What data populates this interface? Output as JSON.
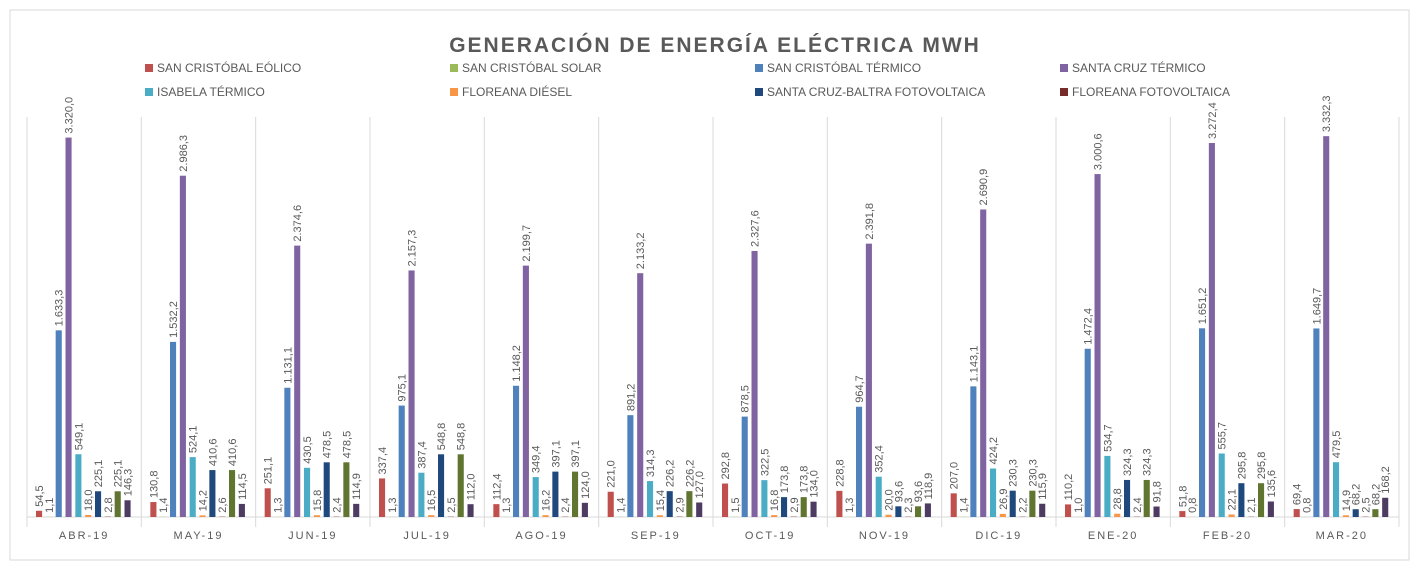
{
  "chart_data": {
    "type": "bar",
    "title": "GENERACIÓN DE ENERGÍA ELÉCTRICA MWH",
    "categories": [
      "ABR-19",
      "MAY-19",
      "JUN-19",
      "JUL-19",
      "AGO-19",
      "SEP-19",
      "OCT-19",
      "NOV-19",
      "DIC-19",
      "ENE-20",
      "FEB-20",
      "MAR-20"
    ],
    "ylim": [
      0,
      3500
    ],
    "series": [
      {
        "name": "SAN CRISTÓBAL EÓLICO",
        "color": "#c0504d",
        "values": [
          54.5,
          130.8,
          251.1,
          337.4,
          112.4,
          221.0,
          292.8,
          228.8,
          207.0,
          110.2,
          51.8,
          69.4
        ],
        "value_labels": [
          "54,5",
          "130,8",
          "251,1",
          "337,4",
          "112,4",
          "221,0",
          "292,8",
          "228,8",
          "207,0",
          "110,2",
          "51,8",
          "69,4"
        ]
      },
      {
        "name": "SAN CRISTÓBAL SOLAR",
        "color": "#9bbb59",
        "values": [
          1.1,
          1.4,
          1.3,
          1.3,
          1.3,
          1.4,
          1.5,
          1.3,
          1.4,
          1.0,
          0.8,
          0.8
        ],
        "value_labels": [
          "1,1",
          "1,4",
          "1,3",
          "1,3",
          "1,3",
          "1,4",
          "1,5",
          "1,3",
          "1,4",
          "1,0",
          "0,8",
          "0,8"
        ]
      },
      {
        "name": "SAN CRISTÓBAL TÉRMICO",
        "color": "#4f81bd",
        "values": [
          1633.3,
          1532.2,
          1131.1,
          975.1,
          1148.2,
          891.2,
          878.5,
          964.7,
          1143.1,
          1472.4,
          1651.2,
          1649.7
        ],
        "value_labels": [
          "1.633,3",
          "1.532,2",
          "1.131,1",
          "975,1",
          "1.148,2",
          "891,2",
          "878,5",
          "964,7",
          "1.143,1",
          "1.472,4",
          "1.651,2",
          "1.649,7"
        ]
      },
      {
        "name": "SANTA CRUZ TÉRMICO",
        "color": "#8064a2",
        "values": [
          3320.0,
          2986.3,
          2374.6,
          2157.3,
          2199.7,
          2133.2,
          2327.6,
          2391.8,
          2690.9,
          3000.6,
          3272.4,
          3332.3
        ],
        "value_labels": [
          "3.320,0",
          "2.986,3",
          "2.374,6",
          "2.157,3",
          "2.199,7",
          "2.133,2",
          "2.327,6",
          "2.391,8",
          "2.690,9",
          "3.000,6",
          "3.272,4",
          "3.332,3"
        ]
      },
      {
        "name": "ISABELA TÉRMICO",
        "color": "#4bacc6",
        "values": [
          549.1,
          524.1,
          430.5,
          387.4,
          349.4,
          314.3,
          322.5,
          352.4,
          424.2,
          534.7,
          555.7,
          479.5
        ],
        "value_labels": [
          "549,1",
          "524,1",
          "430,5",
          "387,4",
          "349,4",
          "314,3",
          "322,5",
          "352,4",
          "424,2",
          "534,7",
          "555,7",
          "479,5"
        ]
      },
      {
        "name": "FLOREANA DIÉSEL",
        "color": "#f79646",
        "values": [
          18.0,
          14.2,
          15.8,
          16.5,
          16.2,
          15.4,
          16.8,
          20.0,
          26.9,
          28.8,
          22.1,
          14.9
        ],
        "value_labels": [
          "18,0",
          "14,2",
          "15,8",
          "16,5",
          "16,2",
          "15,4",
          "16,8",
          "20,0",
          "26,9",
          "28,8",
          "22,1",
          "14,9"
        ]
      },
      {
        "name": "SANTA CRUZ-BALTRA FOTOVOLTAICA",
        "color": "#1f497d",
        "values": [
          225.1,
          410.6,
          478.5,
          548.8,
          397.1,
          226.2,
          173.8,
          93.6,
          230.3,
          324.3,
          295.8,
          68.2
        ],
        "value_labels": [
          "225,1",
          "410,6",
          "478,5",
          "548,8",
          "397,1",
          "226,2",
          "173,8",
          "93,6",
          "230,3",
          "324,3",
          "295,8",
          "68,2"
        ]
      },
      {
        "name": "FLOREANA FOTOVOLTAICA",
        "color": "#772c2a",
        "values": [
          2.8,
          2.6,
          2.4,
          2.5,
          2.4,
          2.9,
          2.9,
          2.3,
          2.2,
          2.4,
          2.1,
          2.5
        ],
        "value_labels": [
          "2,8",
          "2,6",
          "2,4",
          "2,5",
          "2,4",
          "2,9",
          "2,9",
          "2,3",
          "2,2",
          "2,4",
          "2,1",
          "2,5"
        ]
      },
      {
        "color": "#5f7530",
        "values": [
          225.1,
          410.6,
          478.5,
          548.8,
          397.1,
          226.2,
          173.8,
          93.6,
          230.3,
          324.3,
          295.8,
          68.2
        ],
        "value_labels": [
          "225,1",
          "410,6",
          "478,5",
          "548,8",
          "397,1",
          "226,2",
          "173,8",
          "93,6",
          "230,3",
          "324,3",
          "295,8",
          "68,2"
        ]
      },
      {
        "color": "#4d3b62",
        "values": [
          146.3,
          114.5,
          114.9,
          112.0,
          124.0,
          127.0,
          134.0,
          118.9,
          115.9,
          91.8,
          135.6,
          168.2
        ],
        "value_labels": [
          "146,3",
          "114,5",
          "114,9",
          "112,0",
          "124,0",
          "127,0",
          "134,0",
          "118,9",
          "115,9",
          "91,8",
          "135,6",
          "168,2"
        ]
      }
    ]
  }
}
